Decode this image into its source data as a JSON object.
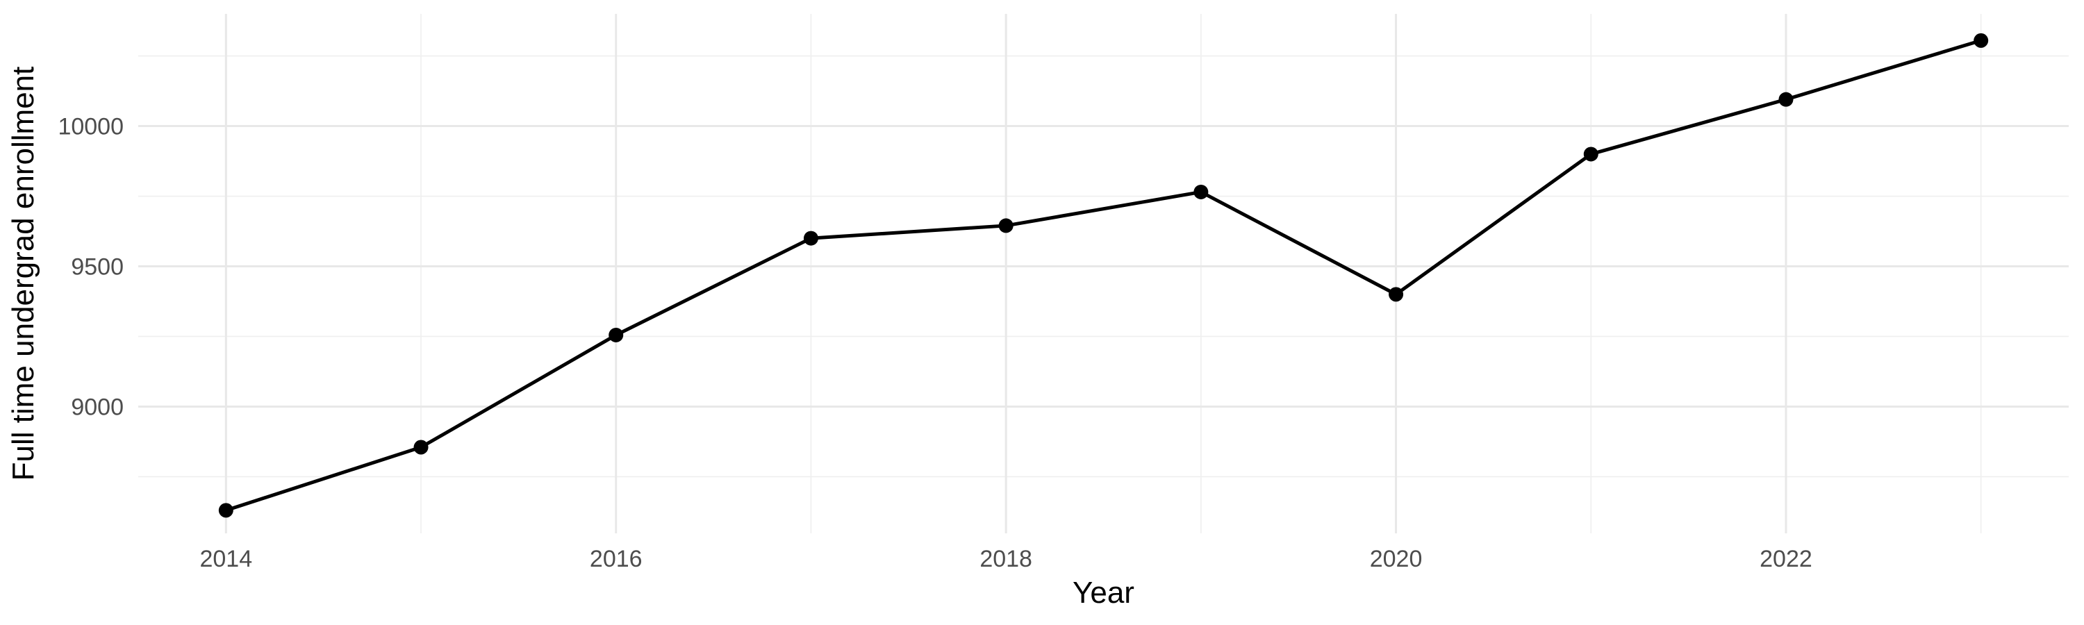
{
  "chart_data": {
    "type": "line",
    "title": "",
    "xlabel": "Year",
    "ylabel": "Full time undergrad enrollment",
    "x": [
      2014,
      2015,
      2016,
      2017,
      2018,
      2019,
      2020,
      2021,
      2022,
      2023
    ],
    "values": [
      8630,
      8855,
      9255,
      9600,
      9645,
      9765,
      9400,
      9900,
      10095,
      10305
    ],
    "x_ticks": [
      2014,
      2016,
      2018,
      2020,
      2022
    ],
    "x_minor_breaks": [
      2015,
      2017,
      2019,
      2021,
      2023
    ],
    "y_ticks": [
      9000,
      9500,
      10000
    ],
    "y_minor_breaks": [
      8750,
      9250,
      9750,
      10250
    ],
    "xlim": [
      2013.55,
      2023.45
    ],
    "ylim": [
      8548,
      10400
    ],
    "grid": "on",
    "legend": "none",
    "colors": {
      "line": "#000000",
      "point": "#000000",
      "grid_major": "#e8e8e8",
      "grid_minor": "#efefef",
      "tick_label": "#4d4d4d",
      "axis_title": "#000000",
      "background": "#ffffff"
    }
  }
}
